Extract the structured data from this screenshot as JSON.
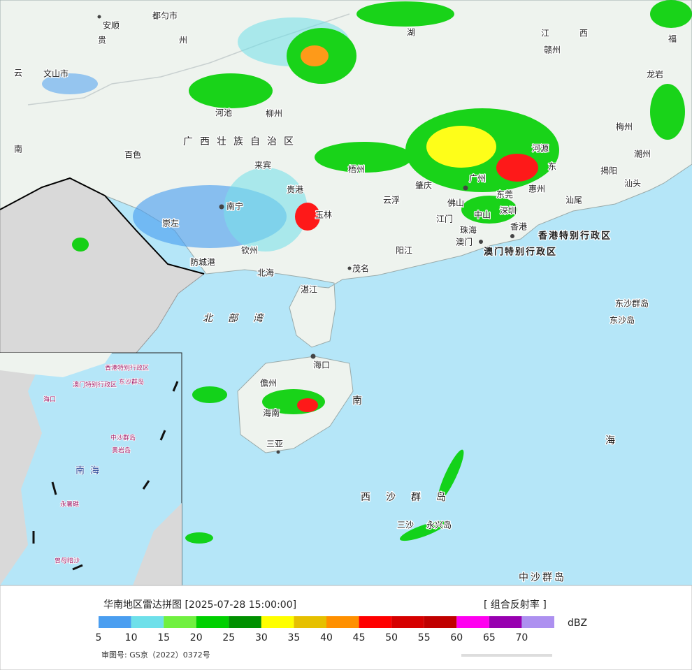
{
  "map": {
    "labels": [
      "安顺",
      "都匀市",
      "贵",
      "州",
      "云",
      "文山市",
      "河池",
      "柳州",
      "广西壮族自治区",
      "百色",
      "南",
      "来宾",
      "南宁",
      "贵港",
      "玉林",
      "崇左",
      "钦州",
      "防城港",
      "北海",
      "梧州",
      "云浮",
      "肇庆",
      "广州",
      "佛山",
      "江门",
      "中山",
      "东莞",
      "深圳",
      "惠州",
      "珠海",
      "澳门",
      "香港",
      "河源",
      "东",
      "汕尾",
      "揭阳",
      "汕头",
      "潮州",
      "梅州",
      "龙岩",
      "赣州",
      "江",
      "西",
      "福",
      "湖",
      "阳江",
      "茂名",
      "湛江",
      "北部湾",
      "香港特别行政区",
      "澳门特别行政区",
      "东沙群岛",
      "东沙岛",
      "海口",
      "儋州",
      "海南",
      "三亚",
      "南",
      "海",
      "西沙群岛",
      "三沙",
      "永兴岛",
      "中沙群岛"
    ]
  },
  "inset": {
    "labels": [
      "南海",
      "香港特别行政区",
      "澳门特别行政区",
      "东沙群岛",
      "海口",
      "中沙群岛",
      "黄岩岛",
      "永暑礁",
      "曾母暗沙"
    ]
  },
  "footer": {
    "title": "华南地区雷达拼图 [2025-07-28 15:00:00]",
    "product": "[ 组合反射率 ]",
    "unit": "dBZ",
    "legend": {
      "colors": [
        "#4a9ef0",
        "#6ee0ea",
        "#70f040",
        "#00d000",
        "#009000",
        "#ffff00",
        "#e6c000",
        "#ff9000",
        "#ff0000",
        "#d60000",
        "#c00000",
        "#ff00f0",
        "#9800b0",
        "#ad90f0"
      ],
      "ticks": [
        5,
        10,
        15,
        20,
        25,
        30,
        35,
        40,
        45,
        50,
        55,
        60,
        65,
        70
      ]
    },
    "approval": "审图号: GS京（2022）0372号"
  }
}
